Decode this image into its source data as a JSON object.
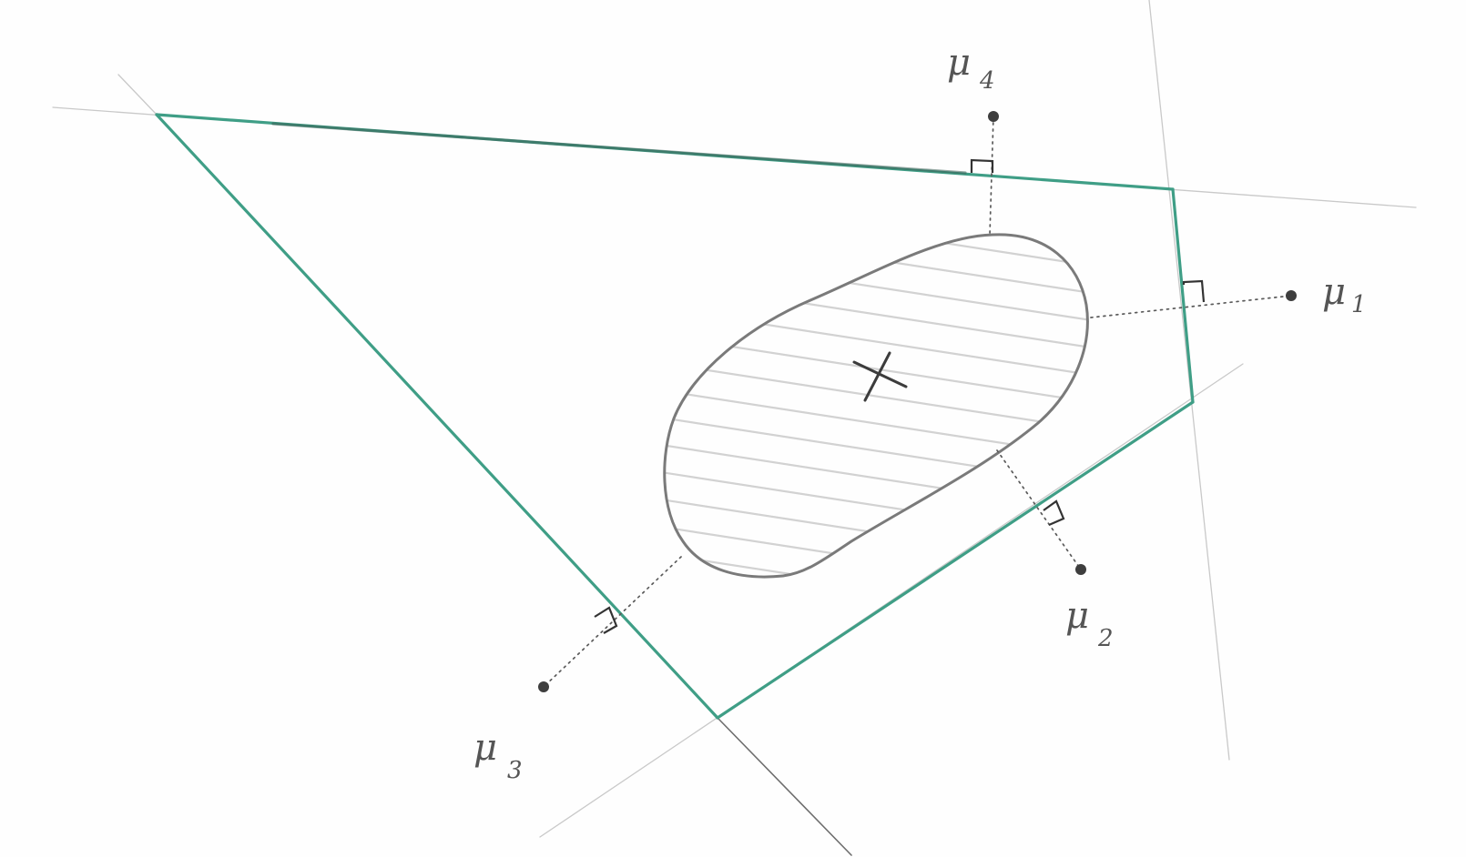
{
  "colors": {
    "polygon_edge": "#3f9e86",
    "polygon_edge_dark": "#3c5f55",
    "pencil": "#555555",
    "hatch": "#d2d2d2"
  },
  "labels": {
    "mu1": {
      "symbol": "μ",
      "index": "1"
    },
    "mu2": {
      "symbol": "μ",
      "index": "2"
    },
    "mu3": {
      "symbol": "μ",
      "index": "3"
    },
    "mu4": {
      "symbol": "μ",
      "index": "4"
    }
  },
  "center_mark": "×"
}
